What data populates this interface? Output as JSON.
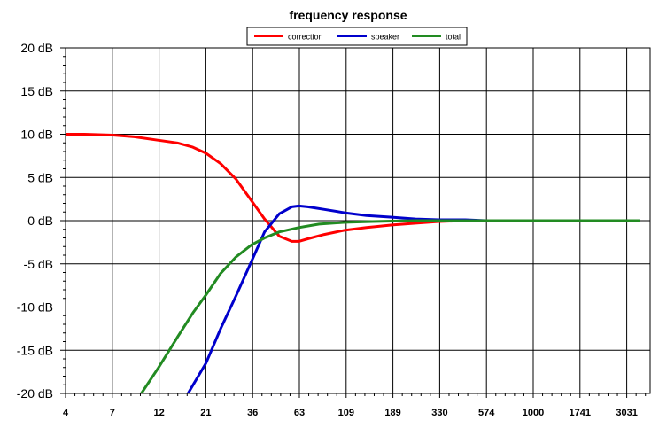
{
  "chart_data": {
    "type": "line",
    "title": "frequency response",
    "xlabel": "",
    "ylabel": "",
    "x_scale": "log",
    "x_tick_labels": [
      "4",
      "7",
      "12",
      "21",
      "36",
      "63",
      "109",
      "189",
      "330",
      "574",
      "1000",
      "1741",
      "3031"
    ],
    "y_tick_labels": [
      "20 dB",
      "15 dB",
      "10 dB",
      "5 dB",
      "0 dB",
      "-5 dB",
      "-10 dB",
      "-15 dB",
      "-20 dB"
    ],
    "ylim": [
      -20,
      20
    ],
    "y_step": 5,
    "grid": true,
    "legend_position": "top-center",
    "series": [
      {
        "name": "correction",
        "color": "#ff0000",
        "x": [
          4,
          5,
          7,
          9,
          12,
          15,
          18,
          21,
          25,
          30,
          36,
          42,
          50,
          58,
          63,
          70,
          85,
          109,
          140,
          189,
          250,
          330,
          450,
          574
        ],
        "y": [
          10.0,
          10.0,
          9.9,
          9.7,
          9.3,
          9.0,
          8.5,
          7.8,
          6.6,
          4.8,
          2.3,
          0.2,
          -1.8,
          -2.4,
          -2.4,
          -2.1,
          -1.6,
          -1.1,
          -0.8,
          -0.5,
          -0.3,
          -0.1,
          0.0,
          0.0
        ]
      },
      {
        "name": "speaker",
        "color": "#0000cc",
        "x": [
          17,
          21,
          25,
          30,
          36,
          42,
          50,
          58,
          63,
          70,
          85,
          109,
          140,
          189,
          250,
          330,
          450,
          574,
          1000,
          3500
        ],
        "y": [
          -20.0,
          -16.5,
          -12.5,
          -8.7,
          -4.7,
          -1.3,
          0.8,
          1.6,
          1.7,
          1.6,
          1.3,
          0.9,
          0.6,
          0.4,
          0.2,
          0.1,
          0.1,
          0.0,
          0.0,
          0.0
        ]
      },
      {
        "name": "total",
        "color": "#228b22",
        "x": [
          9.8,
          12,
          15,
          18,
          21,
          25,
          30,
          36,
          42,
          50,
          63,
          80,
          109,
          150,
          189,
          250,
          330,
          574,
          1000,
          3500
        ],
        "y": [
          -20.0,
          -17.0,
          -13.5,
          -10.7,
          -8.6,
          -6.1,
          -4.2,
          -2.8,
          -2.0,
          -1.3,
          -0.8,
          -0.4,
          -0.2,
          -0.1,
          -0.05,
          0.0,
          0.0,
          0.0,
          0.0,
          0.0
        ]
      }
    ]
  }
}
